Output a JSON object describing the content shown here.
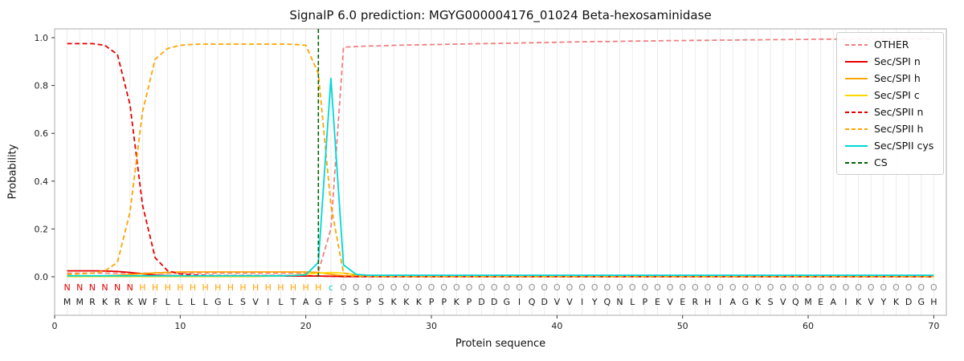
{
  "chart_data": {
    "type": "line",
    "title": "SignalP 6.0 prediction: MGYG000004176_01024 Beta-hexosaminidase",
    "xlabel": "Protein sequence",
    "ylabel": "Probability",
    "xlim": [
      0,
      71
    ],
    "ylim": [
      0.0,
      1.0
    ],
    "xticks": [
      0,
      10,
      20,
      30,
      40,
      50,
      60,
      70
    ],
    "yticks": [
      "0.0",
      "0.2",
      "0.4",
      "0.6",
      "0.8",
      "1.0"
    ],
    "grid": "vertical-per-residue",
    "legend_position": "upper right",
    "cs_position": 21,
    "sequence": "MMRKRKWFLLLLGLSVILTAGFSSPSKKKPPKPDDGIQDVVIYQNLPEVERHIAGKSVQMEAIKVYKDGH",
    "region_labels": "NNNNNNHHHHHHHHHHHHHHHcOOOOOOOOOOOOOOOOOOOOOOOOOOOOOOOOOOOOOOOOOOOOOOOO",
    "label_colors": {
      "N": "#e60000",
      "H": "#ffa500",
      "c": "#00cdcd",
      "O": "#8f8f8f"
    },
    "colors": {
      "grid": "#e7e7e7",
      "frame": "#ababab",
      "tick": "#333333",
      "sequence_text": "#1a1a1a",
      "background": "#ffffff"
    },
    "series": [
      {
        "name": "OTHER",
        "color": "#f08080",
        "dash": true,
        "values": [
          0.015,
          0.015,
          0.015,
          0.015,
          0.015,
          0.015,
          0.015,
          0.015,
          0.015,
          0.015,
          0.015,
          0.015,
          0.015,
          0.015,
          0.015,
          0.015,
          0.015,
          0.015,
          0.015,
          0.015,
          0.02,
          0.2,
          0.96,
          0.963,
          0.965,
          0.966,
          0.968,
          0.969,
          0.97,
          0.971,
          0.972,
          0.973,
          0.974,
          0.975,
          0.976,
          0.977,
          0.978,
          0.979,
          0.98,
          0.981,
          0.982,
          0.983,
          0.984,
          0.984,
          0.985,
          0.986,
          0.986,
          0.987,
          0.988,
          0.988,
          0.989,
          0.989,
          0.99,
          0.99,
          0.991,
          0.991,
          0.992,
          0.992,
          0.993,
          0.993,
          0.994,
          0.994,
          0.994,
          0.995,
          0.995,
          0.995,
          0.996,
          0.996,
          0.996,
          0.996
        ]
      },
      {
        "name": "Sec/SPI n",
        "color": "#e60000",
        "dash": false,
        "values": [
          0.025,
          0.025,
          0.025,
          0.024,
          0.022,
          0.018,
          0.012,
          0.007,
          0.005,
          0.004,
          0.003,
          0.003,
          0.003,
          0.003,
          0.003,
          0.003,
          0.003,
          0.003,
          0.003,
          0.003,
          0.003,
          0.002,
          0.001,
          0.001,
          0.001,
          0.001,
          0.001,
          0.001,
          0.001,
          0.001,
          0.001,
          0.001,
          0.001,
          0.001,
          0.001,
          0.001,
          0.001,
          0.001,
          0.001,
          0.001,
          0.001,
          0.001,
          0.001,
          0.001,
          0.001,
          0.001,
          0.001,
          0.001,
          0.001,
          0.001,
          0.001,
          0.001,
          0.001,
          0.001,
          0.001,
          0.001,
          0.001,
          0.001,
          0.001,
          0.001,
          0.001,
          0.001,
          0.001,
          0.001,
          0.001,
          0.001,
          0.001,
          0.001,
          0.001,
          0.001
        ]
      },
      {
        "name": "Sec/SPI h",
        "color": "#ffa500",
        "dash": false,
        "values": [
          0.002,
          0.002,
          0.003,
          0.004,
          0.006,
          0.009,
          0.013,
          0.016,
          0.018,
          0.02,
          0.02,
          0.02,
          0.02,
          0.02,
          0.02,
          0.02,
          0.02,
          0.02,
          0.02,
          0.02,
          0.018,
          0.01,
          0.004,
          0.002,
          0.001,
          0.001,
          0.001,
          0.001,
          0.001,
          0.001,
          0.001,
          0.001,
          0.001,
          0.001,
          0.001,
          0.001,
          0.001,
          0.001,
          0.001,
          0.001,
          0.001,
          0.001,
          0.001,
          0.001,
          0.001,
          0.001,
          0.001,
          0.001,
          0.001,
          0.001,
          0.001,
          0.001,
          0.001,
          0.001,
          0.001,
          0.001,
          0.001,
          0.001,
          0.001,
          0.001,
          0.001,
          0.001,
          0.001,
          0.001,
          0.001,
          0.001,
          0.001,
          0.001,
          0.001,
          0.001
        ]
      },
      {
        "name": "Sec/SPI c",
        "color": "#ffd700",
        "dash": false,
        "values": [
          0.001,
          0.001,
          0.001,
          0.001,
          0.001,
          0.001,
          0.001,
          0.001,
          0.001,
          0.001,
          0.001,
          0.001,
          0.001,
          0.001,
          0.001,
          0.001,
          0.002,
          0.003,
          0.006,
          0.01,
          0.015,
          0.018,
          0.015,
          0.009,
          0.005,
          0.003,
          0.002,
          0.001,
          0.001,
          0.001,
          0.001,
          0.001,
          0.001,
          0.001,
          0.001,
          0.001,
          0.001,
          0.001,
          0.001,
          0.001,
          0.001,
          0.001,
          0.001,
          0.001,
          0.001,
          0.001,
          0.001,
          0.001,
          0.001,
          0.001,
          0.001,
          0.001,
          0.001,
          0.001,
          0.001,
          0.001,
          0.001,
          0.001,
          0.001,
          0.001,
          0.001,
          0.001,
          0.001,
          0.001,
          0.001,
          0.001,
          0.001,
          0.001,
          0.001,
          0.001
        ]
      },
      {
        "name": "Sec/SPII n",
        "color": "#e60000",
        "dash": true,
        "values": [
          0.975,
          0.975,
          0.975,
          0.968,
          0.93,
          0.72,
          0.3,
          0.08,
          0.025,
          0.012,
          0.008,
          0.006,
          0.005,
          0.005,
          0.005,
          0.005,
          0.005,
          0.005,
          0.005,
          0.004,
          0.003,
          0.002,
          0.001,
          0.001,
          0.001,
          0.001,
          0.001,
          0.001,
          0.001,
          0.001,
          0.001,
          0.001,
          0.001,
          0.001,
          0.001,
          0.001,
          0.001,
          0.001,
          0.001,
          0.001,
          0.001,
          0.001,
          0.001,
          0.001,
          0.001,
          0.001,
          0.001,
          0.001,
          0.001,
          0.001,
          0.001,
          0.001,
          0.001,
          0.001,
          0.001,
          0.001,
          0.001,
          0.001,
          0.001,
          0.001,
          0.001,
          0.001,
          0.001,
          0.001,
          0.001,
          0.001,
          0.001,
          0.001,
          0.001,
          0.001
        ]
      },
      {
        "name": "Sec/SPII h",
        "color": "#ffa500",
        "dash": true,
        "values": [
          0.01,
          0.012,
          0.015,
          0.025,
          0.06,
          0.27,
          0.69,
          0.91,
          0.955,
          0.968,
          0.972,
          0.973,
          0.973,
          0.973,
          0.973,
          0.973,
          0.973,
          0.973,
          0.972,
          0.968,
          0.85,
          0.3,
          0.015,
          0.005,
          0.002,
          0.002,
          0.002,
          0.002,
          0.002,
          0.002,
          0.002,
          0.002,
          0.002,
          0.002,
          0.002,
          0.002,
          0.002,
          0.002,
          0.002,
          0.002,
          0.002,
          0.002,
          0.002,
          0.002,
          0.002,
          0.002,
          0.002,
          0.002,
          0.002,
          0.002,
          0.002,
          0.002,
          0.002,
          0.002,
          0.002,
          0.002,
          0.002,
          0.002,
          0.002,
          0.002,
          0.002,
          0.002,
          0.002,
          0.002,
          0.002,
          0.002,
          0.002,
          0.002,
          0.002,
          0.002
        ]
      },
      {
        "name": "Sec/SPII cys",
        "color": "#00d7d7",
        "dash": false,
        "values": [
          0.004,
          0.004,
          0.004,
          0.004,
          0.004,
          0.004,
          0.004,
          0.004,
          0.004,
          0.004,
          0.004,
          0.004,
          0.004,
          0.004,
          0.004,
          0.004,
          0.004,
          0.004,
          0.005,
          0.008,
          0.06,
          0.83,
          0.05,
          0.01,
          0.006,
          0.006,
          0.006,
          0.006,
          0.006,
          0.006,
          0.006,
          0.006,
          0.006,
          0.006,
          0.006,
          0.006,
          0.006,
          0.006,
          0.006,
          0.006,
          0.006,
          0.006,
          0.006,
          0.006,
          0.006,
          0.006,
          0.006,
          0.006,
          0.006,
          0.006,
          0.006,
          0.006,
          0.006,
          0.006,
          0.006,
          0.006,
          0.006,
          0.006,
          0.006,
          0.006,
          0.006,
          0.006,
          0.006,
          0.006,
          0.006,
          0.006,
          0.006,
          0.006,
          0.006,
          0.006
        ]
      },
      {
        "name": "CS",
        "color": "#006400",
        "dash": true,
        "vline": 21
      }
    ]
  }
}
